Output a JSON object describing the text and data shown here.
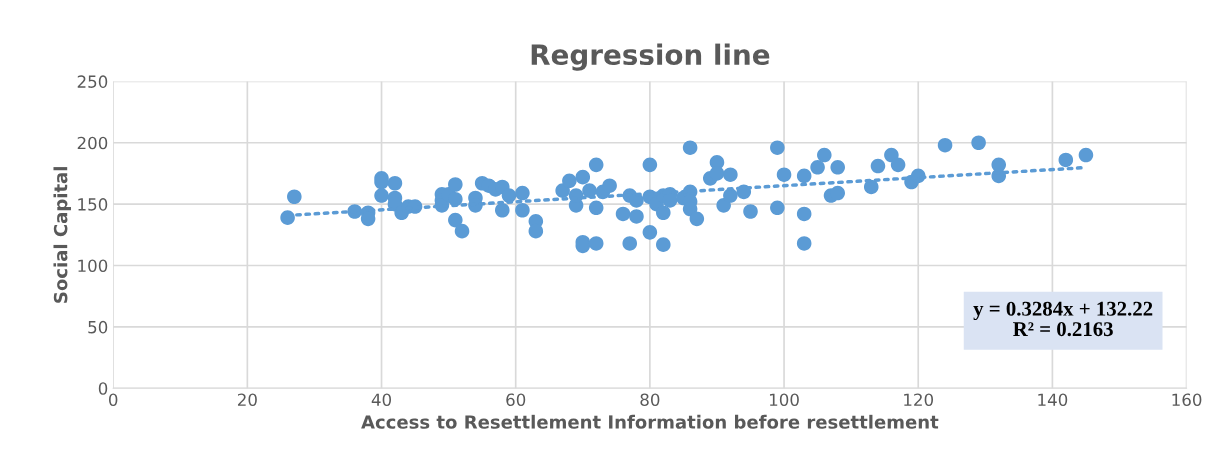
{
  "chart_data": {
    "type": "scatter",
    "title": "Regression line",
    "xlabel": "Access to Resettlement Information before resettlement",
    "ylabel": "Social Capital",
    "xlim": [
      0,
      160
    ],
    "xticks": [
      0,
      20,
      40,
      60,
      80,
      100,
      120,
      140,
      160
    ],
    "ylim": [
      0,
      250
    ],
    "yticks": [
      0,
      50,
      100,
      150,
      200,
      250
    ],
    "grid": true,
    "legend": false,
    "annotations": [
      "y = 0.3284x + 132.22\nR² = 0.2163"
    ],
    "series": [
      {
        "color": "#5b9bd5",
        "marker": "circle",
        "x": [
          26,
          27,
          36,
          38,
          38,
          40,
          40,
          40,
          42,
          42,
          42,
          43,
          44,
          45,
          49,
          49,
          49,
          50,
          51,
          51,
          51,
          52,
          54,
          54,
          55,
          56,
          57,
          58,
          58,
          59,
          61,
          61,
          63,
          63,
          67,
          68,
          69,
          69,
          70,
          70,
          70,
          71,
          72,
          72,
          72,
          73,
          74,
          76,
          77,
          77,
          78,
          78,
          80,
          80,
          80,
          81,
          82,
          82,
          82,
          83,
          83,
          85,
          86,
          86,
          86,
          86,
          87,
          89,
          90,
          90,
          91,
          92,
          92,
          94,
          95,
          99,
          99,
          100,
          103,
          103,
          103,
          105,
          106,
          107,
          108,
          108,
          113,
          114,
          116,
          117,
          119,
          120,
          124,
          129,
          132,
          132,
          142,
          145
        ],
        "values": [
          139,
          156,
          144,
          143,
          138,
          171,
          168,
          157,
          167,
          155,
          150,
          143,
          148,
          148,
          158,
          153,
          149,
          158,
          166,
          154,
          137,
          128,
          155,
          149,
          167,
          165,
          162,
          164,
          145,
          157,
          159,
          145,
          136,
          128,
          161,
          169,
          149,
          157,
          172,
          119,
          116,
          161,
          182,
          147,
          118,
          160,
          165,
          142,
          157,
          118,
          153,
          140,
          182,
          156,
          127,
          150,
          157,
          143,
          117,
          158,
          153,
          155,
          196,
          160,
          152,
          146,
          138,
          171,
          184,
          175,
          149,
          174,
          157,
          160,
          144,
          196,
          147,
          174,
          173,
          142,
          118,
          180,
          190,
          157,
          180,
          159,
          164,
          181,
          190,
          182,
          168,
          173,
          198,
          200,
          182,
          173,
          186,
          190
        ]
      },
      {
        "type": "line",
        "color": "#5b9bd5",
        "line_style": "dotted",
        "marker": "none",
        "x": [
          26,
          145
        ],
        "values": [
          140.8,
          179.8
        ]
      }
    ]
  }
}
